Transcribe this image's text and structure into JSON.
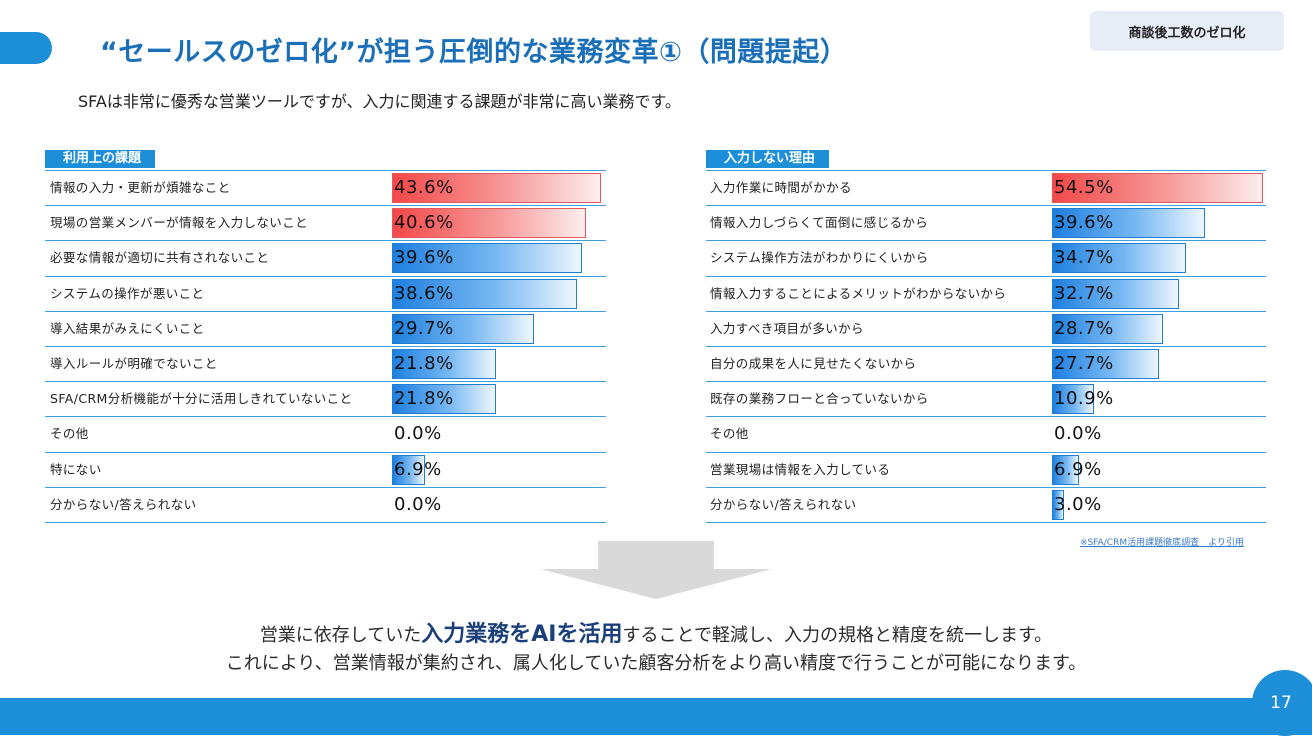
{
  "header": {
    "title": "“セールスのゼロ化”が担う圧倒的な業務変革①（問題提起）",
    "corner_tag": "商談後工数のゼロ化",
    "subtitle": "SFAは非常に優秀な営業ツールですが、入力に関連する課題が非常に高い業務です。"
  },
  "chart_data": [
    {
      "type": "bar",
      "title": "利用上の課題",
      "categories": [
        "情報の入力・更新が煩雑なこと",
        "現場の営業メンバーが情報を入力しないこと",
        "必要な情報が適切に共有されないこと",
        "システムの操作が悪いこと",
        "導入結果がみえにくいこと",
        "導入ルールが明確でないこと",
        "SFA/CRM分析機能が十分に活用しきれていないこと",
        "その他",
        "特にない",
        "分からない/答えられない"
      ],
      "values": [
        43.6,
        40.6,
        39.6,
        38.6,
        29.7,
        21.8,
        21.8,
        0.0,
        6.9,
        0.0
      ],
      "value_labels": [
        "43.6%",
        "40.6%",
        "39.6%",
        "38.6%",
        "29.7%",
        "21.8%",
        "21.8%",
        "0.0%",
        "6.9%",
        "0.0%"
      ],
      "highlight_top": 2,
      "colors": {
        "highlight": "#f34848",
        "normal": "#1e7fe0"
      }
    },
    {
      "type": "bar",
      "title": "入力しない理由",
      "categories": [
        "入力作業に時間がかかる",
        "情報入力しづらくて面倒に感じるから",
        "システム操作方法がわかりにくいから",
        "情報入力することによるメリットがわからないから",
        "入力すべき項目が多いから",
        "自分の成果を人に見せたくないから",
        "既存の業務フローと合っていないから",
        "その他",
        "営業現場は情報を入力している",
        "分からない/答えられない"
      ],
      "values": [
        54.5,
        39.6,
        34.7,
        32.7,
        28.7,
        27.7,
        10.9,
        0.0,
        6.9,
        3.0
      ],
      "value_labels": [
        "54.5%",
        "39.6%",
        "34.7%",
        "32.7%",
        "28.7%",
        "27.7%",
        "10.9%",
        "0.0%",
        "6.9%",
        "3.0%"
      ],
      "highlight_top": 1,
      "colors": {
        "highlight": "#f34848",
        "normal": "#1e7fe0"
      }
    }
  ],
  "source_note": "※SFA/CRM活用課題徹底調査　より引用",
  "conclusion": {
    "line1_pre": "営業に依存していた",
    "line1_emph": "入力業務をAIを活用",
    "line1_post": "することで軽減し、入力の規格と精度を統一します。",
    "line2": "これにより、営業情報が集約され、属人化していた顧客分析をより高い精度で行うことが可能になります。"
  },
  "page_number": "17",
  "colors": {
    "accent": "#1d8fd8",
    "title": "#1a6fb8",
    "emphasis": "#1a3f7a"
  }
}
